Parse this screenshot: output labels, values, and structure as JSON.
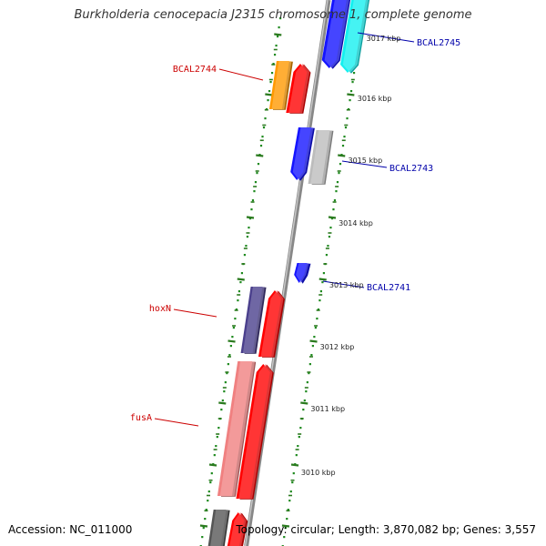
{
  "title": "Burkholderia cenocepacia J2315 chromosome 1, complete genome",
  "footer": {
    "accession_label": "Accession: NC_011000",
    "stats_label": "Topology: circular; Length: 3,870,082 bp; Genes: 3,557"
  },
  "colors": {
    "backbone": "#888888",
    "tick": "#2a7a1e",
    "ruler_dots": "#1f8a1f",
    "left_gene_label": "#cc0000",
    "right_gene_label": "#0000aa"
  },
  "ruler": {
    "unit": "kbp",
    "labels": [
      "3017 kbp",
      "3016 kbp",
      "3015 kbp",
      "3014 kbp",
      "3013 kbp",
      "3012 kbp",
      "3011 kbp",
      "3010 kbp"
    ]
  },
  "gene_labels": [
    {
      "name": "BCAL2745",
      "side": "right"
    },
    {
      "name": "BCAL2744",
      "side": "left"
    },
    {
      "name": "BCAL2743",
      "side": "right"
    },
    {
      "name": "BCAL2741",
      "side": "right"
    },
    {
      "name": "hoxN",
      "side": "left"
    },
    {
      "name": "fusA",
      "side": "left"
    }
  ],
  "features": [
    {
      "id": "blue-cds-top",
      "color": "#1414ff"
    },
    {
      "id": "cyan-cds-top",
      "color": "#14f0f0"
    },
    {
      "id": "orange-cds",
      "color": "#ff9900"
    },
    {
      "id": "red-cds-upper",
      "color": "#ff0000"
    },
    {
      "id": "blue-cds-mid",
      "color": "#1414ff"
    },
    {
      "id": "grey-cds-mid",
      "color": "#bcbcbc"
    },
    {
      "id": "small-blue-cds",
      "color": "#1414ff"
    },
    {
      "id": "navy-cds-hoxn",
      "color": "#4a3f8c"
    },
    {
      "id": "red-cds-hoxn",
      "color": "#ff0000"
    },
    {
      "id": "pink-cds-fusa",
      "color": "#f08080"
    },
    {
      "id": "red-cds-fusa",
      "color": "#ff0000"
    },
    {
      "id": "dark-grey-cds-bottom",
      "color": "#555555"
    },
    {
      "id": "red-cds-bottom",
      "color": "#ff0000"
    }
  ]
}
